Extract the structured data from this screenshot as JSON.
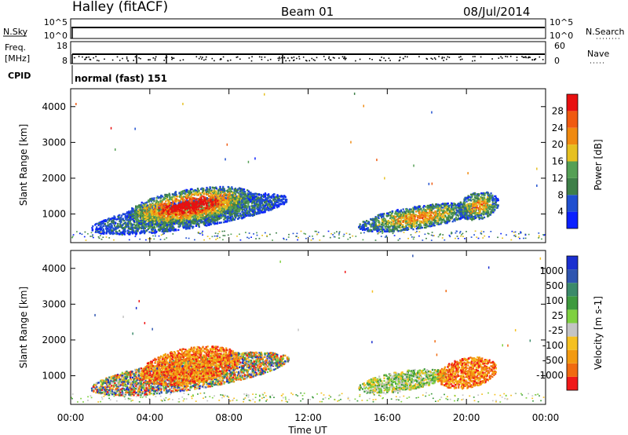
{
  "header": {
    "station": "Halley (fitACF)",
    "beam": "Beam 01",
    "date": "08/Jul/2014"
  },
  "small_panels": {
    "nsky_label": "N.Sky",
    "nsky_ticks": [
      "10^5",
      "10^0"
    ],
    "nsearch_label": "N.Search",
    "nsearch_ticks": [
      "10^5",
      "10^0"
    ],
    "freq_label_1": "Freq.",
    "freq_label_2": "[MHz]",
    "freq_ticks": [
      "18",
      "8"
    ],
    "nave_label": "Nave",
    "nave_ticks": [
      "60",
      "0"
    ],
    "cpid_label": "CPID",
    "cpid_text": "normal (fast) 151"
  },
  "colors": {
    "power_scale": [
      "#0a20ff",
      "#1f4fd0",
      "#3e7f48",
      "#55a055",
      "#e6c020",
      "#f08a10",
      "#f05a10",
      "#e81010"
    ],
    "velocity_scale": [
      "#f01818",
      "#f06a10",
      "#f39a10",
      "#f5c020",
      "#c4c4c4",
      "#7fd040",
      "#3e9a3e",
      "#3b8a6a",
      "#2f55b0",
      "#1a2fd0"
    ]
  },
  "chart_data": [
    {
      "type": "heatmap",
      "name": "power-panel",
      "xlabel": "Time UT",
      "ylabel": "Slant Range [km]",
      "colorbar_label": "Power [dB]",
      "colorbar_ticks": [
        "28",
        "24",
        "20",
        "16",
        "12",
        "8",
        "4"
      ],
      "xlim": [
        0,
        24
      ],
      "ylim": [
        200,
        4500
      ],
      "x_ticks": [
        "00:00",
        "04:00",
        "08:00",
        "12:00",
        "16:00",
        "20:00",
        "00:00"
      ],
      "y_ticks": [
        "1000",
        "2000",
        "3000",
        "4000"
      ],
      "regions": [
        {
          "t0": 1.0,
          "t1": 11.0,
          "r0": 550,
          "r1": 1500,
          "level": "low"
        },
        {
          "t0": 2.8,
          "t1": 9.2,
          "r0": 700,
          "r1": 1800,
          "level": "high"
        },
        {
          "t0": 14.5,
          "t1": 20.5,
          "r0": 550,
          "r1": 1300,
          "level": "medium"
        },
        {
          "t0": 19.5,
          "t1": 21.6,
          "r0": 800,
          "r1": 1700,
          "level": "medium"
        }
      ]
    },
    {
      "type": "heatmap",
      "name": "velocity-panel",
      "xlabel": "Time UT",
      "ylabel": "Slant Range [km]",
      "colorbar_label": "Velocity [m s-1]",
      "colorbar_ticks": [
        "1000",
        "500",
        "100",
        "25",
        "-25",
        "-100",
        "-500",
        "-1000"
      ],
      "xlim": [
        0,
        24
      ],
      "ylim": [
        200,
        4500
      ],
      "x_ticks": [
        "00:00",
        "04:00",
        "08:00",
        "12:00",
        "16:00",
        "20:00",
        "00:00"
      ],
      "y_ticks": [
        "1000",
        "2000",
        "3000",
        "4000"
      ],
      "regions": [
        {
          "t0": 1.0,
          "t1": 11.0,
          "r0": 550,
          "r1": 1600,
          "level": "mixed"
        },
        {
          "t0": 3.5,
          "t1": 8.5,
          "r0": 700,
          "r1": 1900,
          "level": "negative"
        },
        {
          "t0": 14.5,
          "t1": 19.0,
          "r0": 550,
          "r1": 1200,
          "level": "small"
        },
        {
          "t0": 18.5,
          "t1": 21.5,
          "r0": 600,
          "r1": 1600,
          "level": "negative"
        }
      ]
    }
  ]
}
